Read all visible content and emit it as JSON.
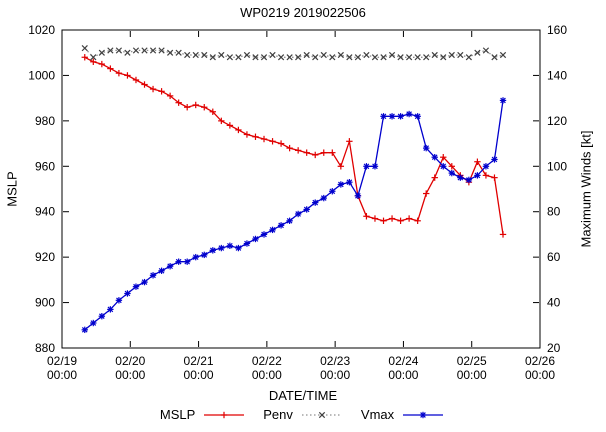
{
  "chart_data": {
    "type": "line",
    "title": "WP0219 2019022506",
    "xlabel": "DATE/TIME",
    "ylabel_left": "MSLP",
    "ylabel_right": "Maximum Winds [kt]",
    "background": "#ffffff",
    "grid": false,
    "legend_position": "bottom-center",
    "x_axis": {
      "min_hours": 0,
      "max_hours": 168,
      "tick_interval_hours": 24,
      "tick_labels": [
        [
          "02/19",
          "00:00"
        ],
        [
          "02/20",
          "00:00"
        ],
        [
          "02/21",
          "00:00"
        ],
        [
          "02/22",
          "00:00"
        ],
        [
          "02/23",
          "00:00"
        ],
        [
          "02/24",
          "00:00"
        ],
        [
          "02/25",
          "00:00"
        ],
        [
          "02/26",
          "00:00"
        ]
      ]
    },
    "y_axis_left": {
      "min": 880,
      "max": 1020,
      "ticks": [
        880,
        900,
        920,
        940,
        960,
        980,
        1000,
        1020
      ]
    },
    "y_axis_right": {
      "min": 20,
      "max": 160,
      "ticks": [
        20,
        40,
        60,
        80,
        100,
        120,
        140,
        160
      ]
    },
    "series": [
      {
        "name": "MSLP",
        "axis": "left",
        "color": "#e00000",
        "line": "solid",
        "marker": "plus",
        "points": [
          [
            8,
            1008
          ],
          [
            11,
            1006
          ],
          [
            14,
            1005
          ],
          [
            17,
            1003
          ],
          [
            20,
            1001
          ],
          [
            23,
            1000
          ],
          [
            26,
            998
          ],
          [
            29,
            996
          ],
          [
            32,
            994
          ],
          [
            35,
            993
          ],
          [
            38,
            991
          ],
          [
            41,
            988
          ],
          [
            44,
            986
          ],
          [
            47,
            987
          ],
          [
            50,
            986
          ],
          [
            53,
            984
          ],
          [
            56,
            980
          ],
          [
            59,
            978
          ],
          [
            62,
            976
          ],
          [
            65,
            974
          ],
          [
            68,
            973
          ],
          [
            71,
            972
          ],
          [
            74,
            971
          ],
          [
            77,
            970
          ],
          [
            80,
            968
          ],
          [
            83,
            967
          ],
          [
            86,
            966
          ],
          [
            89,
            965
          ],
          [
            92,
            966
          ],
          [
            95,
            966
          ],
          [
            98,
            960
          ],
          [
            101,
            971
          ],
          [
            104,
            947
          ],
          [
            107,
            938
          ],
          [
            110,
            937
          ],
          [
            113,
            936
          ],
          [
            116,
            937
          ],
          [
            119,
            936
          ],
          [
            122,
            937
          ],
          [
            125,
            936
          ],
          [
            128,
            948
          ],
          [
            131,
            955
          ],
          [
            134,
            964
          ],
          [
            137,
            960
          ],
          [
            140,
            956
          ],
          [
            143,
            953
          ],
          [
            146,
            962
          ],
          [
            149,
            956
          ],
          [
            152,
            955
          ],
          [
            155,
            930
          ]
        ]
      },
      {
        "name": "Penv",
        "axis": "left",
        "color": "#909090",
        "marker_color": "#404040",
        "line": "dotted",
        "marker": "cross",
        "points": [
          [
            8,
            1012
          ],
          [
            11,
            1008
          ],
          [
            14,
            1010
          ],
          [
            17,
            1011
          ],
          [
            20,
            1011
          ],
          [
            23,
            1010
          ],
          [
            26,
            1011
          ],
          [
            29,
            1011
          ],
          [
            32,
            1011
          ],
          [
            35,
            1011
          ],
          [
            38,
            1010
          ],
          [
            41,
            1010
          ],
          [
            44,
            1009
          ],
          [
            47,
            1009
          ],
          [
            50,
            1009
          ],
          [
            53,
            1008
          ],
          [
            56,
            1009
          ],
          [
            59,
            1008
          ],
          [
            62,
            1008
          ],
          [
            65,
            1009
          ],
          [
            68,
            1008
          ],
          [
            71,
            1008
          ],
          [
            74,
            1009
          ],
          [
            77,
            1008
          ],
          [
            80,
            1008
          ],
          [
            83,
            1008
          ],
          [
            86,
            1009
          ],
          [
            89,
            1008
          ],
          [
            92,
            1009
          ],
          [
            95,
            1008
          ],
          [
            98,
            1009
          ],
          [
            101,
            1008
          ],
          [
            104,
            1008
          ],
          [
            107,
            1009
          ],
          [
            110,
            1008
          ],
          [
            113,
            1008
          ],
          [
            116,
            1009
          ],
          [
            119,
            1008
          ],
          [
            122,
            1008
          ],
          [
            125,
            1008
          ],
          [
            128,
            1008
          ],
          [
            131,
            1009
          ],
          [
            134,
            1008
          ],
          [
            137,
            1009
          ],
          [
            140,
            1009
          ],
          [
            143,
            1008
          ],
          [
            146,
            1010
          ],
          [
            149,
            1011
          ],
          [
            152,
            1008
          ],
          [
            155,
            1009
          ]
        ]
      },
      {
        "name": "Vmax",
        "axis": "right",
        "color": "#0000cd",
        "line": "solid",
        "marker": "asterisk",
        "points": [
          [
            8,
            28
          ],
          [
            11,
            31
          ],
          [
            14,
            34
          ],
          [
            17,
            37
          ],
          [
            20,
            41
          ],
          [
            23,
            44
          ],
          [
            26,
            47
          ],
          [
            29,
            49
          ],
          [
            32,
            52
          ],
          [
            35,
            54
          ],
          [
            38,
            56
          ],
          [
            41,
            58
          ],
          [
            44,
            58
          ],
          [
            47,
            60
          ],
          [
            50,
            61
          ],
          [
            53,
            63
          ],
          [
            56,
            64
          ],
          [
            59,
            65
          ],
          [
            62,
            64
          ],
          [
            65,
            66
          ],
          [
            68,
            68
          ],
          [
            71,
            70
          ],
          [
            74,
            72
          ],
          [
            77,
            74
          ],
          [
            80,
            76
          ],
          [
            83,
            79
          ],
          [
            86,
            81
          ],
          [
            89,
            84
          ],
          [
            92,
            86
          ],
          [
            95,
            89
          ],
          [
            98,
            92
          ],
          [
            101,
            93
          ],
          [
            104,
            87
          ],
          [
            107,
            100
          ],
          [
            110,
            100
          ],
          [
            113,
            122
          ],
          [
            116,
            122
          ],
          [
            119,
            122
          ],
          [
            122,
            123
          ],
          [
            125,
            122
          ],
          [
            128,
            108
          ],
          [
            131,
            104
          ],
          [
            134,
            100
          ],
          [
            137,
            97
          ],
          [
            140,
            95
          ],
          [
            143,
            94
          ],
          [
            146,
            96
          ],
          [
            149,
            100
          ],
          [
            152,
            103
          ],
          [
            155,
            129
          ]
        ]
      }
    ]
  }
}
